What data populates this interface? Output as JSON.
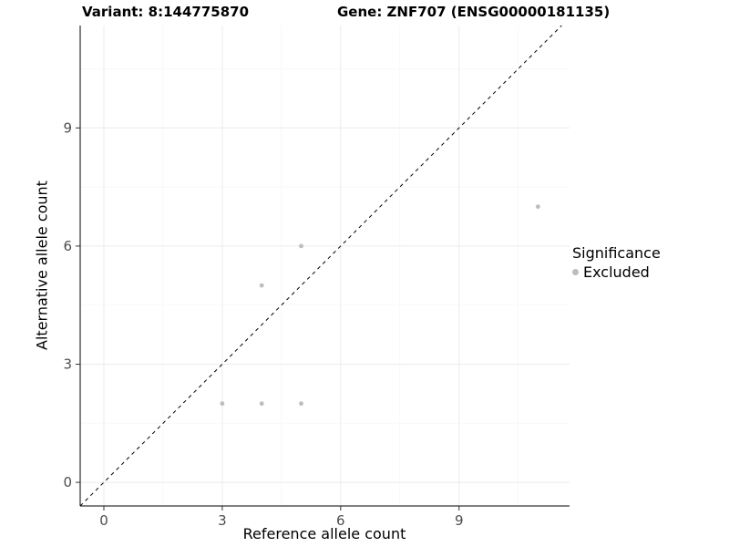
{
  "header": {
    "variant_title": "Variant: 8:144775870",
    "gene_title": "Gene: ZNF707 (ENSG00000181135)"
  },
  "legend": {
    "title": "Significance",
    "items": [
      {
        "label": "Excluded",
        "color": "#bdbdbd"
      }
    ]
  },
  "chart_data": {
    "type": "scatter",
    "title": "",
    "xlabel": "Reference allele count",
    "ylabel": "Alternative allele count",
    "xlim": [
      -0.6,
      11.8
    ],
    "ylim": [
      -0.6,
      11.6
    ],
    "ticks": [
      0,
      3,
      6,
      9
    ],
    "minor_ticks": [
      1.5,
      4.5,
      7.5,
      10.5
    ],
    "grid": true,
    "legend_position": "right",
    "identity_line": {
      "style": "dashed",
      "slope": 1,
      "intercept": 0
    },
    "series": [
      {
        "name": "Excluded",
        "color": "#bdbdbd",
        "points": [
          [
            3,
            2
          ],
          [
            4,
            2
          ],
          [
            5,
            2
          ],
          [
            4,
            5
          ],
          [
            5,
            6
          ],
          [
            11,
            7
          ]
        ]
      }
    ],
    "colors": {
      "grid_major": "#ebebeb",
      "grid_minor": "#f6f6f6",
      "axis": "#000000",
      "tick": "#333333",
      "tick_label": "#4d4d4d",
      "identity_line": "#000000"
    }
  }
}
